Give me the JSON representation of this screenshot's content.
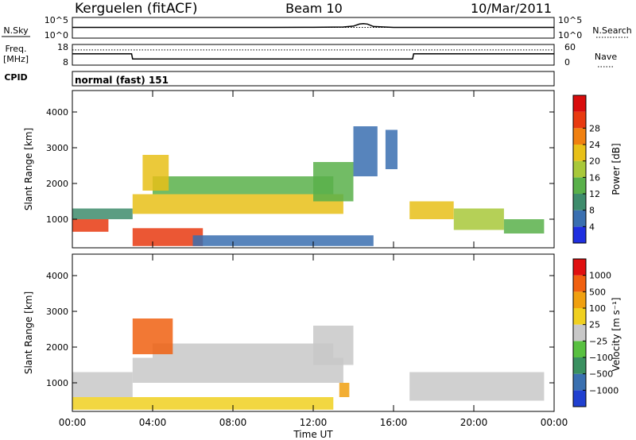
{
  "header": {
    "station": "Kerguelen (fitACF)",
    "beam": "Beam 10",
    "date": "10/Mar/2011"
  },
  "left_labels": {
    "nsky": "N.Sky",
    "freq_line1": "Freq.",
    "freq_line2": "[MHz]",
    "cpid": "CPID"
  },
  "right_labels": {
    "nsearch": "N.Search",
    "nave": "Nave"
  },
  "cpid_text": "normal (fast) 151",
  "colors": {
    "frame": "#000000",
    "background": "#ffffff"
  },
  "chart_data": [
    {
      "type": "line",
      "name": "noise-panel",
      "y_ticks": [
        "10^5",
        "10^0"
      ],
      "y2_ticks": [
        "10^5",
        "10^0"
      ],
      "x": [
        0,
        10,
        12,
        13.5,
        14,
        14.3,
        14.5,
        14.7,
        15,
        16,
        24
      ],
      "nsky": [
        2.6,
        2.6,
        2.62,
        2.7,
        2.9,
        3.4,
        3.5,
        3.4,
        2.8,
        2.6,
        2.6
      ],
      "nsearch": [
        2.6,
        2.6,
        2.6,
        2.6,
        2.6,
        2.6,
        2.6,
        2.6,
        2.6,
        2.6,
        2.6
      ]
    },
    {
      "type": "line",
      "name": "freq-panel",
      "y_ticks": [
        "18",
        "8"
      ],
      "y2_ticks": [
        "60",
        "0"
      ],
      "x": [
        0,
        2.95,
        3.0,
        16.95,
        17.0,
        24
      ],
      "freq": [
        13.5,
        13.5,
        11.0,
        11.0,
        13.5,
        13.5
      ],
      "nave": [
        44,
        44,
        44,
        44,
        44,
        44
      ]
    },
    {
      "type": "heatmap",
      "name": "power-panel",
      "ylabel": "Slant Range [km]",
      "xlim": [
        0,
        24
      ],
      "ylim": [
        200,
        4600
      ],
      "y_ticks": [
        "1000",
        "2000",
        "3000",
        "4000"
      ],
      "colorbar": {
        "label": "Power [dB]",
        "ticks": [
          "4",
          "8",
          "12",
          "16",
          "20",
          "24",
          "28"
        ],
        "colors": [
          "#1f2fe0",
          "#3a6fb0",
          "#3e8c6c",
          "#59b04a",
          "#a8c83a",
          "#e8c018",
          "#f08010",
          "#e83a10",
          "#d80c0c"
        ]
      },
      "bands": [
        {
          "x": [
            0,
            1.8
          ],
          "y": [
            650,
            1000
          ],
          "level": 7
        },
        {
          "x": [
            0,
            3.0
          ],
          "y": [
            1000,
            1300
          ],
          "level": 2
        },
        {
          "x": [
            3.0,
            6.5
          ],
          "y": [
            250,
            750
          ],
          "level": 7
        },
        {
          "x": [
            3.0,
            13.5
          ],
          "y": [
            1150,
            1700
          ],
          "level": 5
        },
        {
          "x": [
            4.0,
            13.0
          ],
          "y": [
            1700,
            2200
          ],
          "level": 3
        },
        {
          "x": [
            3.5,
            4.8
          ],
          "y": [
            1800,
            2800
          ],
          "level": 5
        },
        {
          "x": [
            12.0,
            14.0
          ],
          "y": [
            1500,
            2600
          ],
          "level": 3
        },
        {
          "x": [
            14.0,
            15.2
          ],
          "y": [
            2200,
            3600
          ],
          "level": 1
        },
        {
          "x": [
            15.6,
            16.2
          ],
          "y": [
            2400,
            3500
          ],
          "level": 1
        },
        {
          "x": [
            6.0,
            15.0
          ],
          "y": [
            250,
            550
          ],
          "level": 1
        },
        {
          "x": [
            16.8,
            19.0
          ],
          "y": [
            1000,
            1500
          ],
          "level": 5
        },
        {
          "x": [
            19.0,
            21.5
          ],
          "y": [
            700,
            1300
          ],
          "level": 4
        },
        {
          "x": [
            21.5,
            23.5
          ],
          "y": [
            600,
            1000
          ],
          "level": 3
        }
      ]
    },
    {
      "type": "heatmap",
      "name": "velocity-panel",
      "ylabel": "Slant Range [km]",
      "xlabel": "Time UT",
      "xlim": [
        0,
        24
      ],
      "ylim": [
        200,
        4600
      ],
      "y_ticks": [
        "1000",
        "2000",
        "3000",
        "4000"
      ],
      "x_ticks": [
        "00:00",
        "04:00",
        "08:00",
        "12:00",
        "16:00",
        "20:00",
        "00:00"
      ],
      "x_tick_values": [
        0,
        4,
        8,
        12,
        16,
        20,
        24
      ],
      "colorbar": {
        "label": "Velocity [m s⁻¹]",
        "ticks": [
          "1000",
          "500",
          "100",
          "25",
          "−25",
          "−100",
          "−500",
          "−1000"
        ],
        "colors": [
          "#2040d0",
          "#3a70b0",
          "#3a9060",
          "#58c040",
          "#c8c8c8",
          "#f0d020",
          "#f0a010",
          "#f06010",
          "#e01010"
        ]
      },
      "bands": [
        {
          "x": [
            0,
            3.0
          ],
          "y": [
            600,
            1300
          ],
          "level": 4
        },
        {
          "x": [
            3.0,
            13.5
          ],
          "y": [
            1000,
            1700
          ],
          "level": 4
        },
        {
          "x": [
            4.0,
            13.0
          ],
          "y": [
            1700,
            2100
          ],
          "level": 4
        },
        {
          "x": [
            3.0,
            5.0
          ],
          "y": [
            1800,
            2800
          ],
          "level": 7
        },
        {
          "x": [
            12.0,
            14.0
          ],
          "y": [
            1500,
            2600
          ],
          "level": 4
        },
        {
          "x": [
            13.3,
            13.8
          ],
          "y": [
            600,
            1000
          ],
          "level": 6
        },
        {
          "x": [
            16.8,
            23.5
          ],
          "y": [
            500,
            1300
          ],
          "level": 4
        },
        {
          "x": [
            0,
            13.0
          ],
          "y": [
            250,
            600
          ],
          "level": 5
        }
      ]
    }
  ]
}
